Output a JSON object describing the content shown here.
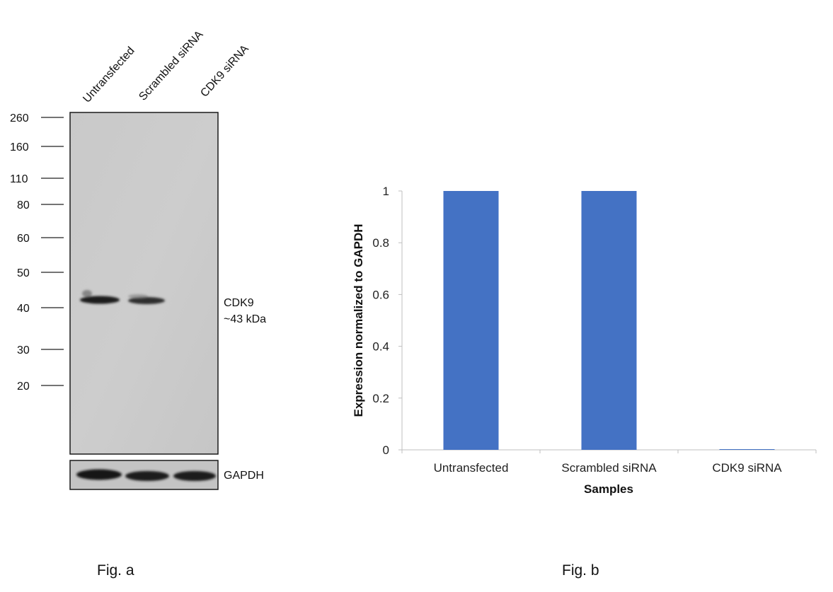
{
  "panel_a": {
    "caption": "Fig. a",
    "lane_labels": [
      "Untransfected",
      "Scrambled siRNA",
      "CDK9 siRNA"
    ],
    "markers": [
      "260",
      "160",
      "110",
      "80",
      "60",
      "50",
      "40",
      "30",
      "20"
    ],
    "band_label": "CDK9",
    "band_size": "~43 kDa",
    "loading_control_label": "GAPDH"
  },
  "panel_b": {
    "caption": "Fig. b"
  },
  "chart_data": {
    "type": "bar",
    "categories": [
      "Untransfected",
      "Scrambled siRNA",
      "CDK9 siRNA"
    ],
    "values": [
      1,
      1,
      0
    ],
    "xlabel": "Samples",
    "ylabel": "Expression normalized to GAPDH",
    "ylim": [
      0,
      1
    ],
    "yticks": [
      "0",
      "0.2",
      "0.4",
      "0.6",
      "0.8",
      "1"
    ],
    "grid": false,
    "bar_color": "#4472c4"
  }
}
